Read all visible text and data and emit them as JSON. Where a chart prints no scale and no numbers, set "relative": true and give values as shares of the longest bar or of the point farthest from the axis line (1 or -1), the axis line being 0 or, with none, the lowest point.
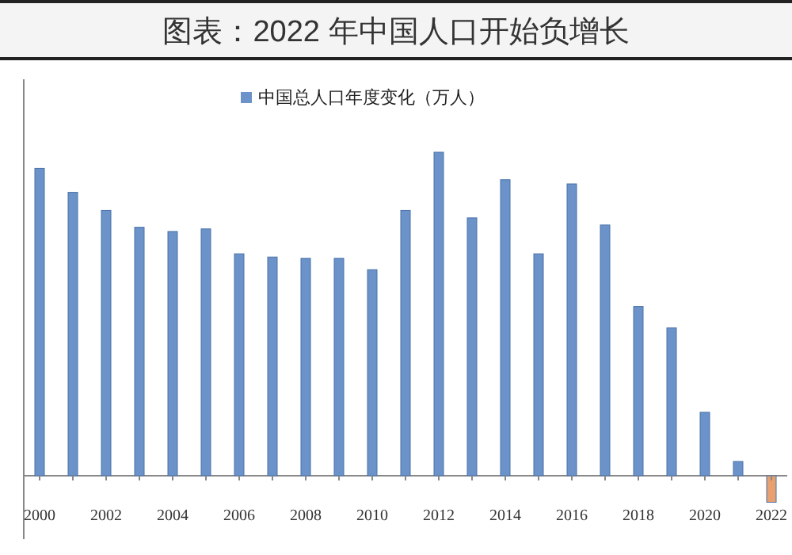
{
  "chart_data": {
    "type": "bar",
    "title": "图表：2022 年中国人口开始负增长",
    "relative": true,
    "legend": "top",
    "categories": [
      "2000",
      null,
      "2002",
      null,
      "2004",
      null,
      "2006",
      null,
      "2008",
      null,
      "2010",
      null,
      "2012",
      null,
      "2014",
      null,
      "2016",
      null,
      "2018",
      null,
      "2020",
      null,
      "2022"
    ],
    "series": [
      {
        "name": "中国总人口年度变化（万人）",
        "color": "#6b93c9",
        "colors": [
          "#6b93c9",
          "#6b93c9",
          "#6b93c9",
          "#6b93c9",
          "#6b93c9",
          "#6b93c9",
          "#6b93c9",
          "#6b93c9",
          "#6b93c9",
          "#6b93c9",
          "#6b93c9",
          "#6b93c9",
          "#6b93c9",
          "#6b93c9",
          "#6b93c9",
          "#6b93c9",
          "#6b93c9",
          "#6b93c9",
          "#6b93c9",
          "#6b93c9",
          "#6b93c9",
          "#6b93c9",
          "#e8a070"
        ],
        "values": [
          0.95,
          0.876,
          0.82,
          0.768,
          0.755,
          0.763,
          0.686,
          0.676,
          0.672,
          0.672,
          0.637,
          0.82,
          1,
          0.797,
          0.915,
          0.686,
          0.902,
          0.775,
          0.523,
          0.457,
          0.196,
          0.044,
          -0.082
        ]
      }
    ]
  }
}
